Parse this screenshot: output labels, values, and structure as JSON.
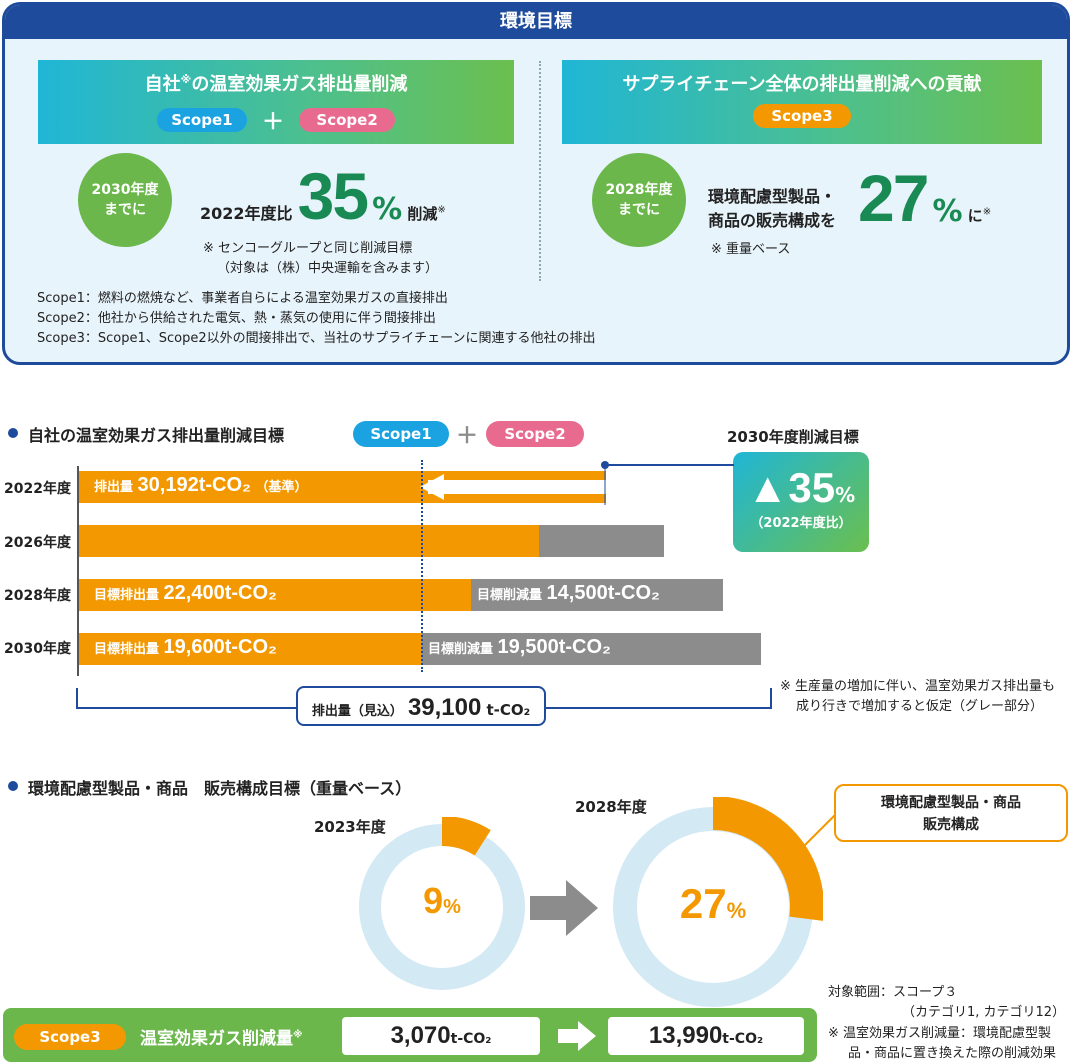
{
  "top": {
    "header": "環境目標",
    "left": {
      "title_pre": "自社",
      "title_mark": "※",
      "title_post": "の温室効果ガス排出量削減",
      "pill1": "Scope1",
      "plus": "＋",
      "pill2": "Scope2",
      "circle_line1": "2030年度",
      "circle_line2": "までに",
      "base": "2022年度比",
      "value": "35",
      "pct": "%",
      "suffix": "削減",
      "suffix_mark": "※",
      "note1": "※ センコーグループと同じ削減目標",
      "note2": "（対象は（株）中央運輸を含みます）"
    },
    "right": {
      "title": "サプライチェーン全体の排出量削減への貢献",
      "pill": "Scope3",
      "circle_line1": "2028年度",
      "circle_line2": "までに",
      "text1": "環境配慮型製品・",
      "text2": "商品の販売構成を",
      "value": "27",
      "pct": "%",
      "suffix": "に",
      "suffix_mark": "※",
      "note": "※ 重量ベース"
    },
    "definitions": [
      "Scope1：燃料の燃焼など、事業者自らによる温室効果ガスの直接排出",
      "Scope2：他社から供給された電気、熱・蒸気の使用に伴う間接排出",
      "Scope3：Scope1、Scope2以外の間接排出で、当社のサプライチェーンに関連する他社の排出"
    ]
  },
  "bar_section": {
    "title": "自社の温室効果ガス排出量削減目標",
    "pill1": "Scope1",
    "plus": "＋",
    "pill2": "Scope2",
    "target_title": "2030年度削減目標",
    "target_value": "▲35",
    "target_pct": "%",
    "target_sub": "（2022年度比）",
    "labels": {
      "row0_prefix": "排出量",
      "row0_value": "30,192t-CO₂",
      "row0_suffix": "（基準）",
      "row2_orange_prefix": "目標排出量",
      "row2_orange_value": "22,400t-CO₂",
      "row2_gray_prefix": "目標削減量",
      "row2_gray_value": "14,500t-CO₂",
      "row3_orange_prefix": "目標排出量",
      "row3_orange_value": "19,600t-CO₂",
      "row3_gray_prefix": "目標削減量",
      "row3_gray_value": "19,500t-CO₂"
    },
    "total_prefix": "排出量（見込）",
    "total_value": "39,100",
    "total_unit": "t-CO₂",
    "footnote1": "※ 生産量の増加に伴い、温室効果ガス排出量も",
    "footnote2": "成り行きで増加すると仮定（グレー部分）"
  },
  "donut_section": {
    "title": "環境配慮型製品・商品　販売構成目標（重量ベース）",
    "year1": "2023年度",
    "value1_num": "9",
    "value1_pct": "%",
    "year2": "2028年度",
    "value2_num": "27",
    "value2_pct": "%",
    "callout1": "環境配慮型製品・商品",
    "callout2": "販売構成",
    "scope_note1": "対象範囲：スコープ３",
    "scope_note2": "（カテゴリ1, カテゴリ12）",
    "def_note1": "※ 温室効果ガス削減量：環境配慮型製",
    "def_note2": "品・商品に置き換えた際の削減効果"
  },
  "bottom_bar": {
    "pill": "Scope3",
    "label": "温室効果ガス削減量",
    "label_mark": "※",
    "value1": "3,070",
    "unit1": "t-CO₂",
    "value2": "13,990",
    "unit2": "t-CO₂"
  },
  "colors": {
    "navy": "#1f4b9c",
    "orange": "#f39800",
    "gray": "#8c8c8c",
    "green": "#6bb74b",
    "dark_green": "#1a8a55",
    "scope1_blue": "#1aa3e0",
    "scope2_pink": "#e96a8f",
    "scope3_orange": "#f39800",
    "donut_ring": "#d3e9f4"
  },
  "chart_data": [
    {
      "type": "bar",
      "orientation": "horizontal",
      "stacked": true,
      "categories": [
        "2022年度",
        "2026年度",
        "2028年度",
        "2030年度"
      ],
      "series": [
        {
          "name": "排出量",
          "values": [
            30192,
            null,
            22400,
            19600
          ]
        },
        {
          "name": "削減量",
          "values": [
            0,
            null,
            14500,
            19500
          ]
        }
      ],
      "projected_2026_total": null,
      "projected_2030_total": 39100,
      "xlim": [
        0,
        40000
      ],
      "title": "自社の温室効果ガス排出量削減目標"
    },
    {
      "type": "pie",
      "title": "2023年度",
      "labels": [
        "環境配慮型製品・商品"
      ],
      "values": [
        9
      ]
    },
    {
      "type": "pie",
      "title": "2028年度",
      "labels": [
        "環境配慮型製品・商品"
      ],
      "values": [
        27
      ]
    }
  ]
}
